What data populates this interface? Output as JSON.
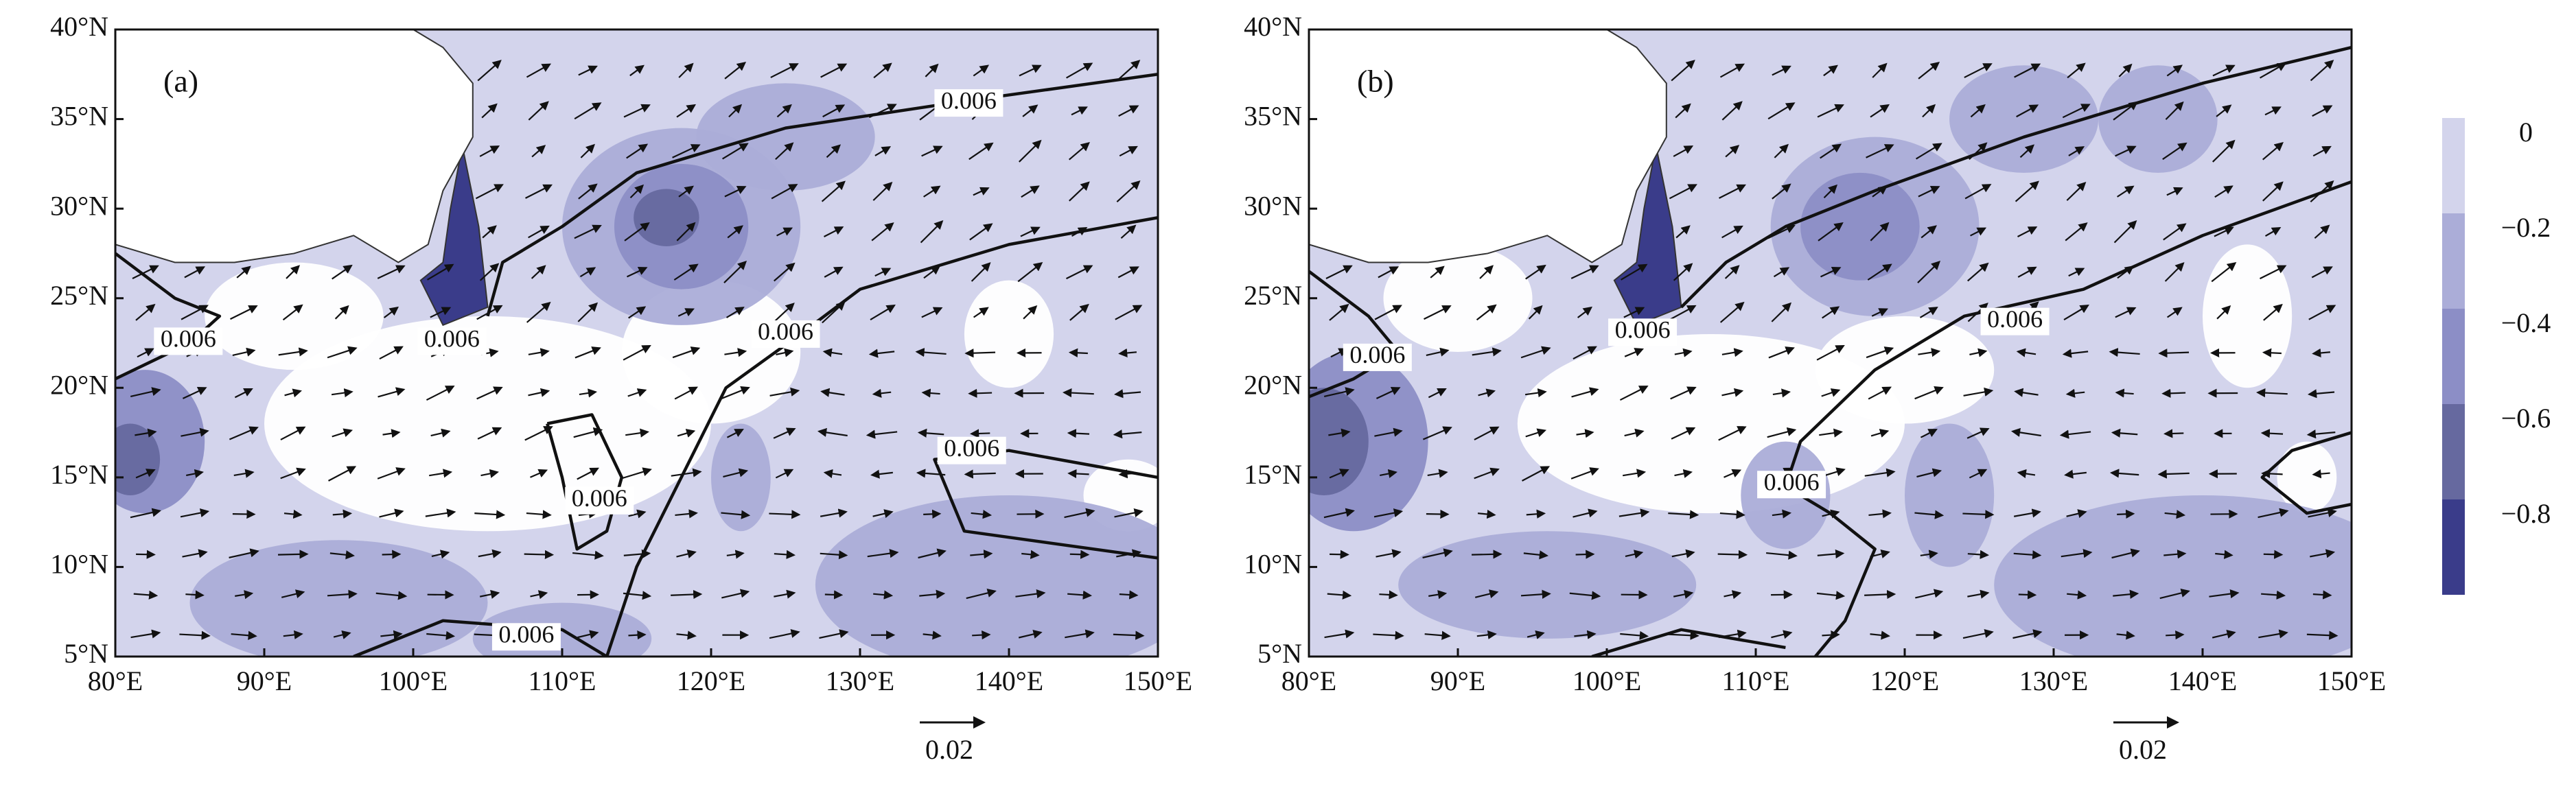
{
  "panels": [
    {
      "label": "(a)",
      "contour_labels": [
        "0.006",
        "0.006",
        "0.006",
        "0.006",
        "0.006",
        "0.006",
        "0.006"
      ]
    },
    {
      "label": "(b)",
      "contour_labels": [
        "0.006",
        "0.006",
        "0.006",
        "0.006"
      ]
    }
  ],
  "axes": {
    "x_tick_labels": [
      "80°E",
      "90°E",
      "100°E",
      "110°E",
      "120°E",
      "130°E",
      "140°E",
      "150°E"
    ],
    "y_tick_labels": [
      "40°N",
      "35°N",
      "30°N",
      "25°N",
      "20°N",
      "15°N",
      "10°N",
      "5°N"
    ]
  },
  "colorbar": {
    "tick_labels": [
      "0",
      "−0.2",
      "−0.4",
      "−0.6",
      "−0.8"
    ]
  },
  "reference_vector": {
    "label": "0.02"
  }
}
